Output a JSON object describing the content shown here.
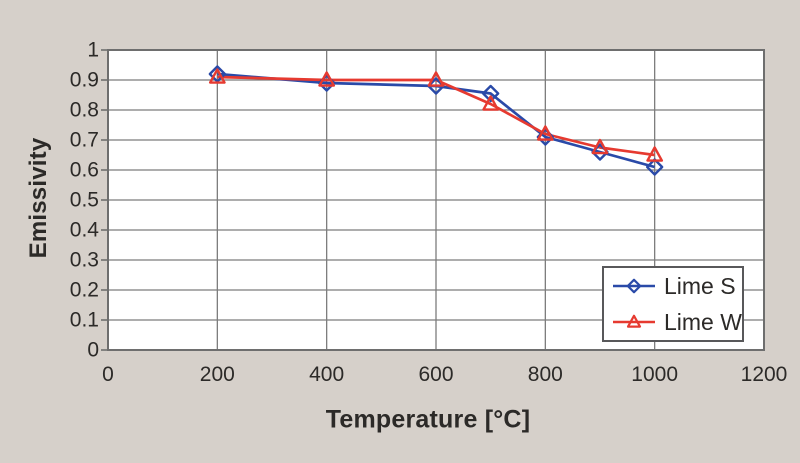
{
  "figure": {
    "background_color": "#d6d0ca",
    "plot_background": "#ffffff",
    "grid_color": "#7c7c7c",
    "frame_color": "#6e6e6e",
    "text_color": "#2c2a28"
  },
  "chart_data": {
    "type": "line",
    "title": "",
    "xlabel": "Temperature [°C]",
    "ylabel": "Emissivity",
    "xlim": [
      0,
      1200
    ],
    "ylim": [
      0,
      1
    ],
    "x_ticks": [
      0,
      200,
      400,
      600,
      800,
      1000,
      1200
    ],
    "y_ticks": [
      0,
      0.1,
      0.2,
      0.3,
      0.4,
      0.5,
      0.6,
      0.7,
      0.8,
      0.9,
      1
    ],
    "grid": true,
    "legend_position": "inside-bottom-right",
    "x": [
      200,
      400,
      600,
      700,
      800,
      900,
      1000
    ],
    "series": [
      {
        "name": "Lime S",
        "marker": "diamond",
        "color": "#2a4aa8",
        "values": [
          0.92,
          0.89,
          0.88,
          0.855,
          0.71,
          0.66,
          0.61
        ]
      },
      {
        "name": "Lime W",
        "marker": "triangle",
        "color": "#e63a30",
        "values": [
          0.91,
          0.9,
          0.9,
          0.82,
          0.72,
          0.675,
          0.65
        ]
      }
    ]
  }
}
